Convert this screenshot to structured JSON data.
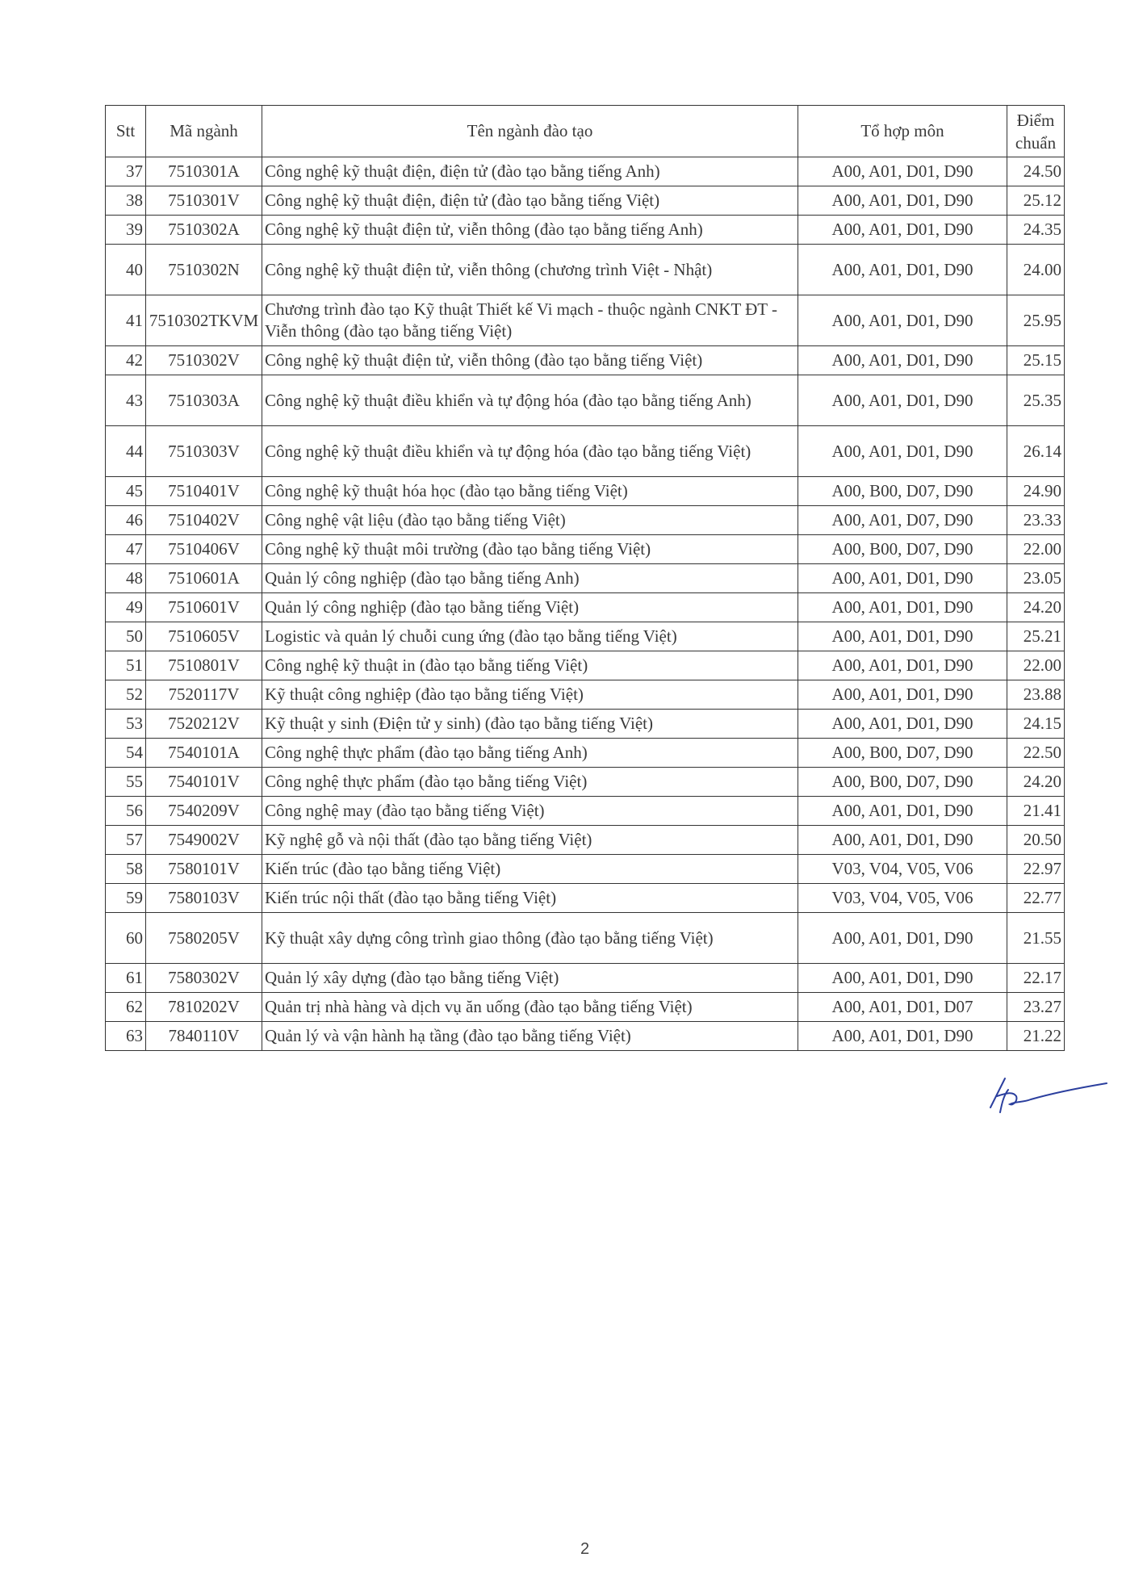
{
  "table": {
    "headers": [
      "Stt",
      "Mã ngành",
      "Tên ngành đào tạo",
      "Tổ hợp môn",
      "Điểm chuẩn"
    ],
    "rows": [
      {
        "stt": "37",
        "code": "7510301A",
        "name": "Công nghệ kỹ thuật điện, điện tử  (đào tạo bằng tiếng Anh)",
        "combo": "A00, A01, D01, D90",
        "score": "24.50"
      },
      {
        "stt": "38",
        "code": "7510301V",
        "name": "Công nghệ kỹ thuật điện, điện tử (đào tạo bằng tiếng Việt)",
        "combo": "A00, A01, D01, D90",
        "score": "25.12"
      },
      {
        "stt": "39",
        "code": "7510302A",
        "name": "Công nghệ kỹ thuật điện tử, viễn thông (đào tạo bằng tiếng Anh)",
        "combo": "A00, A01, D01, D90",
        "score": "24.35"
      },
      {
        "stt": "40",
        "code": "7510302N",
        "name": "Công nghệ kỹ thuật điện tử, viễn thông (chương trình Việt - Nhật)",
        "combo": "A00, A01, D01, D90",
        "score": "24.00",
        "double": true
      },
      {
        "stt": "41",
        "code": "7510302TKVM",
        "name": "Chương trình đào tạo Kỹ thuật Thiết kế Vi mạch - thuộc ngành CNKT ĐT - Viễn thông (đào tạo bằng tiếng Việt)",
        "combo": "A00, A01, D01, D90",
        "score": "25.95",
        "double": true
      },
      {
        "stt": "42",
        "code": "7510302V",
        "name": "Công nghệ kỹ thuật điện tử, viễn thông (đào tạo bằng tiếng Việt)",
        "combo": "A00, A01, D01, D90",
        "score": "25.15"
      },
      {
        "stt": "43",
        "code": "7510303A",
        "name": "Công nghệ kỹ thuật điều khiển và tự động hóa  (đào tạo bằng tiếng Anh)",
        "combo": "A00, A01, D01, D90",
        "score": "25.35",
        "double": true
      },
      {
        "stt": "44",
        "code": "7510303V",
        "name": "Công nghệ kỹ thuật điều khiển và tự động hóa (đào tạo bằng tiếng Việt)",
        "combo": "A00, A01, D01, D90",
        "score": "26.14",
        "double": true
      },
      {
        "stt": "45",
        "code": "7510401V",
        "name": "Công nghệ kỹ thuật hóa học (đào tạo bằng tiếng Việt)",
        "combo": "A00, B00, D07, D90",
        "score": "24.90"
      },
      {
        "stt": "46",
        "code": "7510402V",
        "name": "Công nghệ vật liệu (đào tạo bằng tiếng Việt)",
        "combo": "A00, A01, D07, D90",
        "score": "23.33"
      },
      {
        "stt": "47",
        "code": "7510406V",
        "name": "Công nghệ kỹ thuật môi trường (đào tạo bằng tiếng Việt)",
        "combo": "A00, B00, D07, D90",
        "score": "22.00"
      },
      {
        "stt": "48",
        "code": "7510601A",
        "name": "Quản lý công nghiệp (đào tạo bằng tiếng Anh)",
        "combo": "A00, A01, D01, D90",
        "score": "23.05"
      },
      {
        "stt": "49",
        "code": "7510601V",
        "name": "Quản lý công nghiệp (đào tạo bằng tiếng Việt)",
        "combo": "A00, A01, D01, D90",
        "score": "24.20"
      },
      {
        "stt": "50",
        "code": "7510605V",
        "name": "Logistic và quản lý chuỗi cung ứng (đào tạo bằng tiếng Việt)",
        "combo": "A00, A01, D01, D90",
        "score": "25.21"
      },
      {
        "stt": "51",
        "code": "7510801V",
        "name": "Công nghệ kỹ thuật in (đào tạo bằng tiếng Việt)",
        "combo": "A00, A01, D01, D90",
        "score": "22.00"
      },
      {
        "stt": "52",
        "code": "7520117V",
        "name": "Kỹ thuật công nghiệp (đào tạo bằng tiếng Việt)",
        "combo": "A00, A01, D01, D90",
        "score": "23.88"
      },
      {
        "stt": "53",
        "code": "7520212V",
        "name": "Kỹ thuật y sinh (Điện tử y sinh) (đào tạo bằng tiếng Việt)",
        "combo": "A00, A01, D01, D90",
        "score": "24.15"
      },
      {
        "stt": "54",
        "code": "7540101A",
        "name": "Công nghệ thực phẩm (đào tạo bằng tiếng Anh)",
        "combo": "A00, B00, D07, D90",
        "score": "22.50"
      },
      {
        "stt": "55",
        "code": "7540101V",
        "name": "Công nghệ thực phẩm (đào tạo bằng tiếng Việt)",
        "combo": "A00, B00, D07, D90",
        "score": "24.20"
      },
      {
        "stt": "56",
        "code": "7540209V",
        "name": "Công nghệ may (đào tạo bằng tiếng Việt)",
        "combo": "A00, A01, D01, D90",
        "score": "21.41"
      },
      {
        "stt": "57",
        "code": "7549002V",
        "name": "Kỹ nghệ gỗ và nội thất (đào tạo bằng tiếng Việt)",
        "combo": "A00, A01, D01, D90",
        "score": "20.50"
      },
      {
        "stt": "58",
        "code": "7580101V",
        "name": "Kiến trúc (đào tạo bằng tiếng Việt)",
        "combo": "V03, V04, V05, V06",
        "score": "22.97"
      },
      {
        "stt": "59",
        "code": "7580103V",
        "name": "Kiến trúc nội thất (đào tạo bằng tiếng Việt)",
        "combo": "V03, V04, V05, V06",
        "score": "22.77"
      },
      {
        "stt": "60",
        "code": "7580205V",
        "name": "Kỹ thuật xây dựng công trình giao thông (đào tạo bằng tiếng Việt)",
        "combo": "A00, A01, D01, D90",
        "score": "21.55",
        "double": true
      },
      {
        "stt": "61",
        "code": "7580302V",
        "name": "Quản lý xây dựng (đào tạo bằng tiếng Việt)",
        "combo": "A00, A01, D01, D90",
        "score": "22.17"
      },
      {
        "stt": "62",
        "code": "7810202V",
        "name": "Quản trị nhà hàng và dịch vụ ăn uống (đào tạo bằng tiếng Việt)",
        "combo": "A00, A01, D01, D07",
        "score": "23.27"
      },
      {
        "stt": "63",
        "code": "7840110V",
        "name": "Quản lý và vận hành hạ tầng (đào tạo bằng tiếng Việt)",
        "combo": "A00, A01, D01, D90",
        "score": "21.22"
      }
    ]
  },
  "page_number": "2",
  "signature": {
    "icon": "handwritten-signature",
    "color": "#2b3f9e"
  }
}
